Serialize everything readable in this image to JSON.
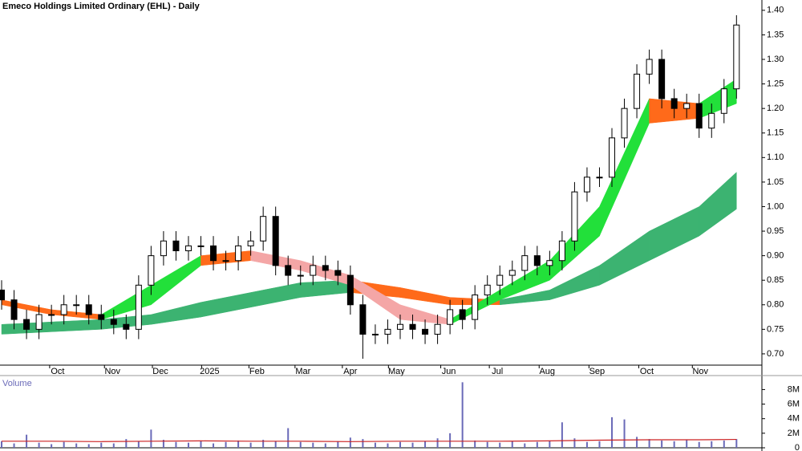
{
  "chart_data": [
    {
      "type": "candlestick",
      "title": "Emeco Holdings Limited Ordinary (EHL) - Daily",
      "x": [
        0,
        1,
        2,
        3,
        4,
        5,
        6,
        7,
        8,
        9,
        10,
        11,
        12,
        13,
        14,
        15,
        16,
        17,
        18,
        19,
        20,
        21,
        22,
        23,
        24,
        25,
        26,
        27,
        28,
        29,
        30,
        31,
        32,
        33,
        34,
        35,
        36,
        37,
        38,
        39,
        40,
        41,
        42,
        43,
        44,
        45,
        46,
        47,
        48,
        49,
        50,
        51,
        52,
        53,
        54,
        55,
        56,
        57,
        58,
        59
      ],
      "open": [
        0.83,
        0.81,
        0.77,
        0.75,
        0.78,
        0.78,
        0.8,
        0.8,
        0.78,
        0.77,
        0.76,
        0.75,
        0.84,
        0.9,
        0.93,
        0.91,
        0.92,
        0.92,
        0.89,
        0.89,
        0.92,
        0.93,
        0.98,
        0.88,
        0.86,
        0.86,
        0.88,
        0.87,
        0.86,
        0.8,
        0.74,
        0.74,
        0.75,
        0.76,
        0.75,
        0.74,
        0.76,
        0.79,
        0.77,
        0.82,
        0.84,
        0.86,
        0.87,
        0.9,
        0.88,
        0.89,
        0.93,
        1.03,
        1.06,
        1.06,
        1.14,
        1.2,
        1.27,
        1.3,
        1.22,
        1.2,
        1.21,
        1.16,
        1.19,
        1.24
      ],
      "high": [
        0.85,
        0.83,
        0.79,
        0.8,
        0.8,
        0.82,
        0.82,
        0.82,
        0.8,
        0.79,
        0.78,
        0.86,
        0.92,
        0.95,
        0.95,
        0.94,
        0.94,
        0.94,
        0.91,
        0.94,
        0.95,
        1.0,
        1.0,
        0.9,
        0.88,
        0.9,
        0.9,
        0.89,
        0.88,
        0.82,
        0.76,
        0.77,
        0.78,
        0.78,
        0.77,
        0.78,
        0.81,
        0.81,
        0.84,
        0.86,
        0.88,
        0.89,
        0.92,
        0.92,
        0.91,
        0.95,
        1.05,
        1.08,
        1.08,
        1.16,
        1.22,
        1.29,
        1.32,
        1.32,
        1.24,
        1.23,
        1.23,
        1.21,
        1.26,
        1.39
      ],
      "low": [
        0.79,
        0.75,
        0.73,
        0.73,
        0.76,
        0.76,
        0.78,
        0.76,
        0.75,
        0.74,
        0.73,
        0.73,
        0.82,
        0.88,
        0.89,
        0.89,
        0.9,
        0.87,
        0.87,
        0.87,
        0.9,
        0.91,
        0.86,
        0.84,
        0.84,
        0.84,
        0.85,
        0.84,
        0.78,
        0.69,
        0.72,
        0.72,
        0.73,
        0.73,
        0.72,
        0.72,
        0.74,
        0.75,
        0.75,
        0.8,
        0.82,
        0.84,
        0.85,
        0.86,
        0.86,
        0.87,
        0.91,
        1.01,
        1.04,
        1.04,
        1.12,
        1.18,
        1.25,
        1.2,
        1.18,
        1.18,
        1.14,
        1.14,
        1.17,
        1.22
      ],
      "close": [
        0.81,
        0.77,
        0.75,
        0.78,
        0.78,
        0.8,
        0.8,
        0.78,
        0.77,
        0.76,
        0.75,
        0.84,
        0.9,
        0.93,
        0.91,
        0.92,
        0.92,
        0.89,
        0.89,
        0.92,
        0.93,
        0.98,
        0.88,
        0.86,
        0.86,
        0.88,
        0.87,
        0.86,
        0.8,
        0.74,
        0.74,
        0.75,
        0.76,
        0.75,
        0.74,
        0.76,
        0.79,
        0.77,
        0.82,
        0.84,
        0.86,
        0.87,
        0.9,
        0.88,
        0.89,
        0.93,
        1.03,
        1.06,
        1.06,
        1.14,
        1.2,
        1.27,
        1.3,
        1.22,
        1.2,
        1.21,
        1.16,
        1.19,
        1.24,
        1.37
      ],
      "bands": [
        {
          "x": [
            0,
            4,
            8,
            12,
            16,
            20,
            24,
            28,
            32,
            36,
            40,
            44,
            48,
            52,
            56,
            59
          ],
          "upper": [
            0.76,
            0.765,
            0.77,
            0.78,
            0.805,
            0.825,
            0.845,
            0.85,
            0.835,
            0.815,
            0.81,
            0.83,
            0.88,
            0.95,
            1.0,
            1.07
          ],
          "lower": [
            0.74,
            0.745,
            0.75,
            0.76,
            0.775,
            0.795,
            0.815,
            0.825,
            0.815,
            0.8,
            0.8,
            0.81,
            0.84,
            0.89,
            0.94,
            0.995
          ],
          "colors": [
            "#3cb371",
            "#3cb371",
            "#3cb371",
            "#3cb371",
            "#3cb371",
            "#3cb371",
            "#3cb371",
            "#ff6a1a",
            "#ff6a1a",
            "#ff6a1a",
            "#3cb371",
            "#3cb371",
            "#3cb371",
            "#3cb371",
            "#3cb371"
          ]
        },
        {
          "x": [
            0,
            4,
            8,
            12,
            16,
            20,
            24,
            28,
            32,
            36,
            40,
            44,
            48,
            52,
            56,
            59
          ],
          "upper": [
            0.81,
            0.79,
            0.78,
            0.84,
            0.9,
            0.91,
            0.89,
            0.86,
            0.8,
            0.77,
            0.83,
            0.89,
            1.0,
            1.22,
            1.21,
            1.26
          ],
          "lower": [
            0.8,
            0.78,
            0.77,
            0.8,
            0.88,
            0.89,
            0.87,
            0.84,
            0.77,
            0.76,
            0.81,
            0.85,
            0.94,
            1.17,
            1.18,
            1.21
          ],
          "colors": [
            "#ff6a1a",
            "#ff6a1a",
            "#22e03a",
            "#22e03a",
            "#ff6a1a",
            "#f4a6a6",
            "#f4a6a6",
            "#f4a6a6",
            "#f4a6a6",
            "#22e03a",
            "#22e03a",
            "#22e03a",
            "#22e03a",
            "#ff6a1a",
            "#22e03a"
          ]
        }
      ],
      "xlim": [
        -0.13,
        61.04
      ],
      "ylim": [
        0.677,
        1.421
      ],
      "xticks": [
        {
          "value": 4.5,
          "label": "Oct"
        },
        {
          "value": 8.9,
          "label": "Nov"
        },
        {
          "value": 12.75,
          "label": "Dec"
        },
        {
          "value": 16.7,
          "label": "2025"
        },
        {
          "value": 20.5,
          "label": "Feb"
        },
        {
          "value": 24.2,
          "label": "Mar"
        },
        {
          "value": 28.0,
          "label": "Apr"
        },
        {
          "value": 31.7,
          "label": "May"
        },
        {
          "value": 35.9,
          "label": "Jun"
        },
        {
          "value": 39.8,
          "label": "Jul"
        },
        {
          "value": 43.8,
          "label": "Aug"
        },
        {
          "value": 47.8,
          "label": "Sep"
        },
        {
          "value": 51.8,
          "label": "Oct"
        },
        {
          "value": 56.1,
          "label": "Nov"
        }
      ],
      "yticks": [
        {
          "value": 0.7,
          "label": "0.70"
        },
        {
          "value": 0.75,
          "label": "0.75"
        },
        {
          "value": 0.8,
          "label": "0.80"
        },
        {
          "value": 0.85,
          "label": "0.85"
        },
        {
          "value": 0.9,
          "label": "0.90"
        },
        {
          "value": 0.95,
          "label": "0.95"
        },
        {
          "value": 1.0,
          "label": "1.00"
        },
        {
          "value": 1.05,
          "label": "1.05"
        },
        {
          "value": 1.1,
          "label": "1.10"
        },
        {
          "value": 1.15,
          "label": "1.15"
        },
        {
          "value": 1.2,
          "label": "1.20"
        },
        {
          "value": 1.25,
          "label": "1.25"
        },
        {
          "value": 1.3,
          "label": "1.30"
        },
        {
          "value": 1.35,
          "label": "1.35"
        },
        {
          "value": 1.4,
          "label": "1.40"
        }
      ]
    },
    {
      "type": "bar",
      "title": "Volume",
      "color": "#6a6ab8",
      "x": [
        0,
        1,
        2,
        3,
        4,
        5,
        6,
        7,
        8,
        9,
        10,
        11,
        12,
        13,
        14,
        15,
        16,
        17,
        18,
        19,
        20,
        21,
        22,
        23,
        24,
        25,
        26,
        27,
        28,
        29,
        30,
        31,
        32,
        33,
        34,
        35,
        36,
        37,
        38,
        39,
        40,
        41,
        42,
        43,
        44,
        45,
        46,
        47,
        48,
        49,
        50,
        51,
        52,
        53,
        54,
        55,
        56,
        57,
        58,
        59
      ],
      "values": [
        900000,
        600000,
        1800000,
        700000,
        500000,
        800000,
        600000,
        500000,
        700000,
        600000,
        1200000,
        900000,
        2500000,
        1100000,
        800000,
        700000,
        900000,
        600000,
        800000,
        1000000,
        700000,
        1100000,
        900000,
        2700000,
        800000,
        700000,
        600000,
        900000,
        1400000,
        1200000,
        700000,
        600000,
        800000,
        700000,
        900000,
        1300000,
        2000000,
        9000000,
        1000000,
        800000,
        700000,
        900000,
        600000,
        800000,
        1000000,
        3500000,
        1300000,
        800000,
        900000,
        4200000,
        3900000,
        1500000,
        1200000,
        1000000,
        900000,
        1100000,
        800000,
        900000,
        1000000,
        1200000
      ],
      "average": {
        "color": "#cc2222",
        "x": [
          0,
          4,
          8,
          12,
          16,
          20,
          24,
          28,
          32,
          36,
          40,
          44,
          48,
          52,
          56,
          59
        ],
        "values": [
          900000,
          900000,
          850000,
          900000,
          950000,
          900000,
          900000,
          850000,
          900000,
          900000,
          900000,
          950000,
          1050000,
          1100000,
          1100000,
          1150000
        ]
      },
      "xlim": [
        -0.13,
        61.04
      ],
      "ylim": [
        0,
        9700000
      ],
      "yticks": [
        0,
        {
          "value": 2000000,
          "label": "2M"
        },
        {
          "value": 4000000,
          "label": "4M"
        },
        {
          "value": 6000000,
          "label": "6M"
        },
        {
          "value": 8000000,
          "label": "8M"
        }
      ]
    }
  ]
}
